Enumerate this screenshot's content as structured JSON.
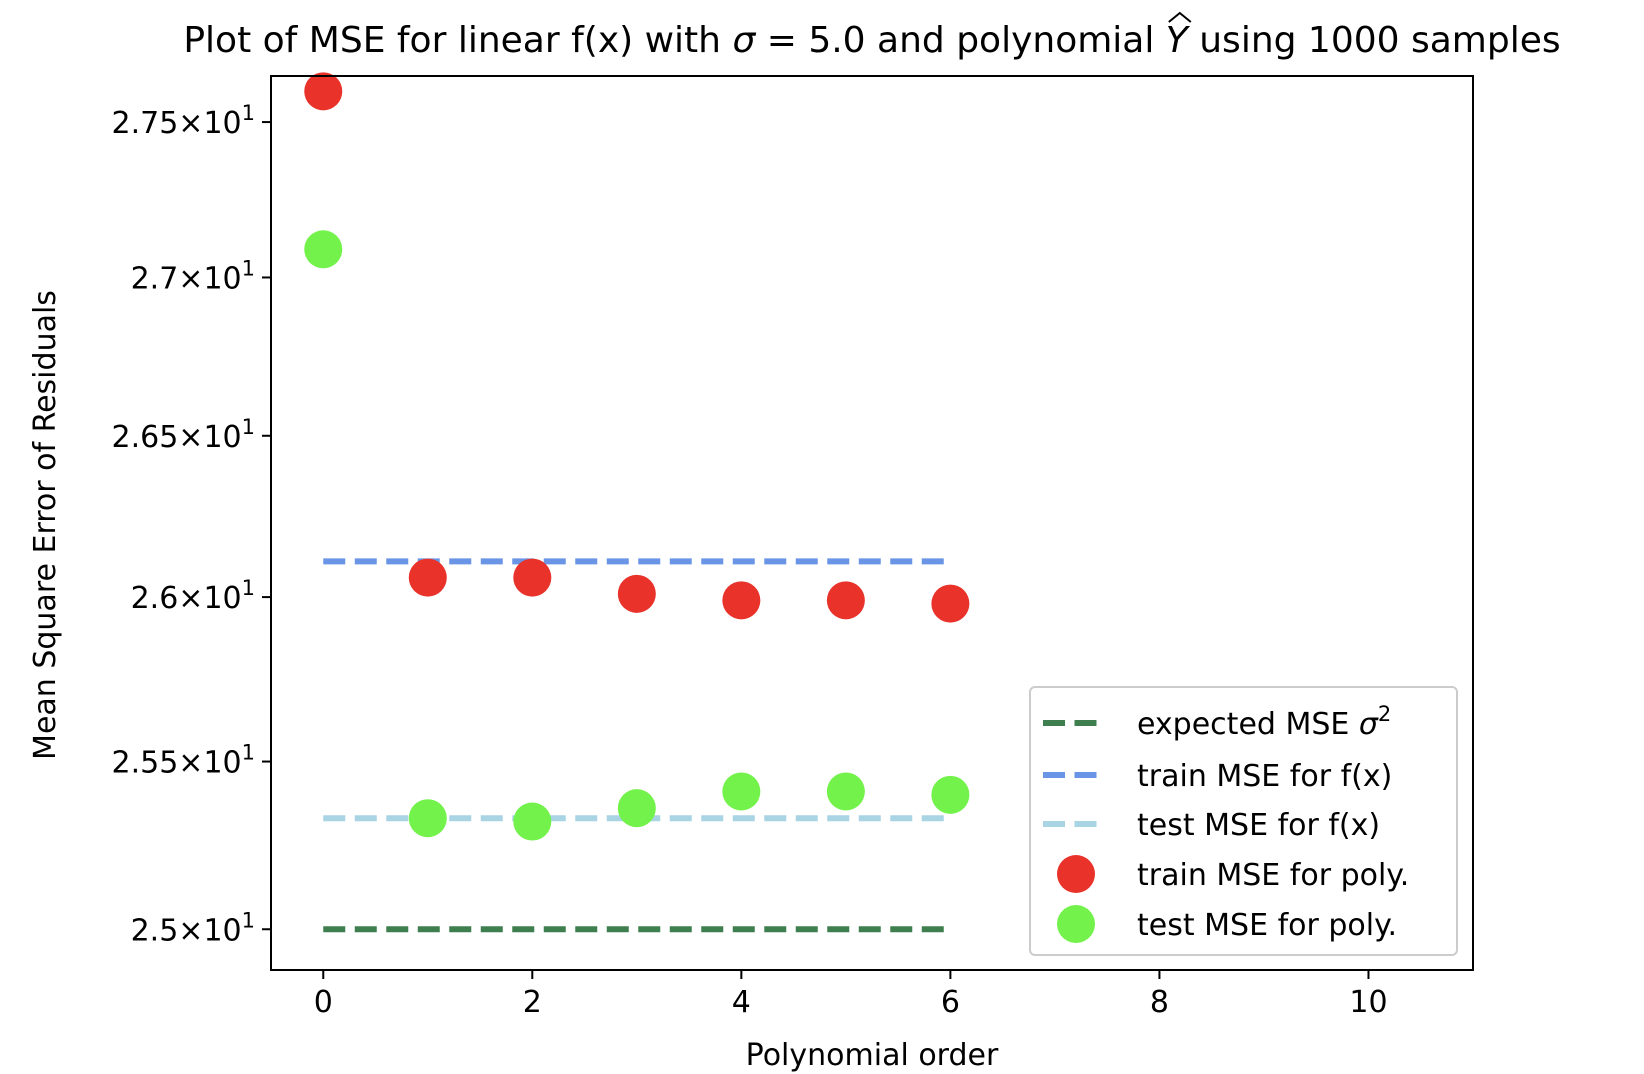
{
  "chart_data": {
    "type": "scatter",
    "title": {
      "prefix": "Plot of MSE for linear f(x) with ",
      "sigma_symbol": "σ",
      "sigma_value": " = 5.0",
      "middle": " and polynomial ",
      "yhat_symbol": "Y",
      "suffix": " using 1000 samples"
    },
    "xlabel": "Polynomial order",
    "ylabel": "Mean Square Error of Residuals",
    "xlim": [
      -0.5,
      11.0
    ],
    "ylim": [
      24.88,
      27.65
    ],
    "yscale": "log",
    "grid": false,
    "legend_position": "lower-right",
    "x_ticks": [
      {
        "value": 0,
        "label": "0"
      },
      {
        "value": 2,
        "label": "2"
      },
      {
        "value": 4,
        "label": "4"
      },
      {
        "value": 6,
        "label": "6"
      },
      {
        "value": 8,
        "label": "8"
      },
      {
        "value": 10,
        "label": "10"
      }
    ],
    "y_ticks": [
      {
        "value": 25.0,
        "mantissa": "2.5"
      },
      {
        "value": 25.5,
        "mantissa": "2.55"
      },
      {
        "value": 26.0,
        "mantissa": "2.6"
      },
      {
        "value": 26.5,
        "mantissa": "2.65"
      },
      {
        "value": 27.0,
        "mantissa": "2.7"
      },
      {
        "value": 27.5,
        "mantissa": "2.75"
      }
    ],
    "y_tick_times": "×",
    "y_tick_base": "10",
    "y_tick_exponent": "1",
    "lines": [
      {
        "name": "expected MSE σ²",
        "legend_text": "expected MSE ",
        "legend_symbol": "σ",
        "legend_sup": "2",
        "color": "#3f7f4f",
        "x": [
          0,
          6
        ],
        "y": [
          25.0,
          25.0
        ]
      },
      {
        "name": "train MSE for f(x)",
        "legend_text": "train MSE for f(x)",
        "color": "#6a95e6",
        "x": [
          0,
          6
        ],
        "y": [
          26.11,
          26.11
        ]
      },
      {
        "name": "test MSE for f(x)",
        "legend_text": "test MSE for f(x)",
        "color": "#a8d4e4",
        "x": [
          0,
          6
        ],
        "y": [
          25.33,
          25.33
        ]
      }
    ],
    "series": [
      {
        "name": "train MSE for poly.",
        "color": "#e8322a",
        "x": [
          0,
          1,
          2,
          3,
          4,
          5,
          6
        ],
        "y": [
          27.6,
          26.06,
          26.06,
          26.01,
          25.99,
          25.99,
          25.98
        ]
      },
      {
        "name": "test MSE for poly.",
        "color": "#72f24a",
        "x": [
          0,
          1,
          2,
          3,
          4,
          5,
          6
        ],
        "y": [
          27.09,
          25.33,
          25.32,
          25.36,
          25.41,
          25.41,
          25.4
        ]
      }
    ]
  }
}
